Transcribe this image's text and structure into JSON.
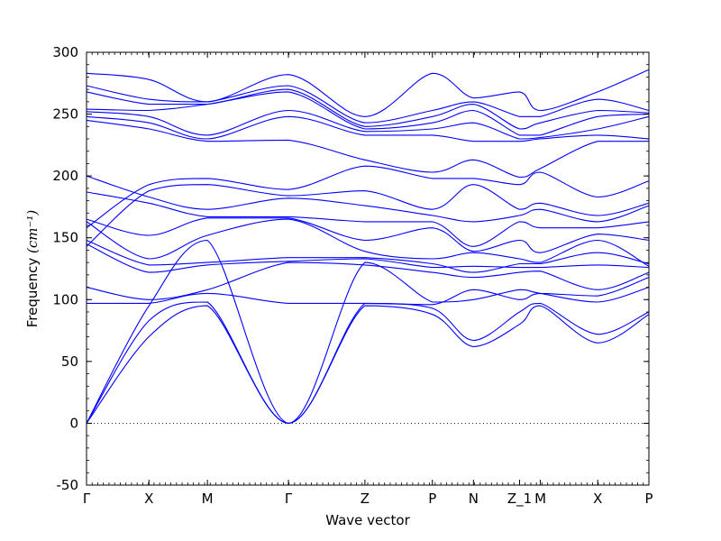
{
  "chart_data": {
    "type": "line",
    "title": "",
    "xlabel": "Wave vector",
    "ylabel_text": "Frequency",
    "ylabel_unit": "(cm⁻¹)",
    "ylim": [
      -50,
      300
    ],
    "yticks": [
      -50,
      0,
      50,
      100,
      150,
      200,
      250,
      300
    ],
    "y_minor_step": 10,
    "x_minor_divisions": 100,
    "kpoint_labels": [
      "Γ",
      "X",
      "M",
      "Γ",
      "Z",
      "P",
      "N",
      "Z_1",
      "M",
      "X",
      "P"
    ],
    "kpoint_positions": [
      0,
      0.111,
      0.215,
      0.359,
      0.495,
      0.615,
      0.688,
      0.77,
      0.807,
      0.909,
      1.0
    ],
    "line_color": "#0000ff",
    "axis_color": "#000000",
    "grid": false,
    "legend": false,
    "zero_line": {
      "value": 0,
      "style": "dotted",
      "color": "#000000"
    },
    "series": [
      {
        "name": "band-01",
        "values": [
          0,
          70,
          95,
          0,
          95,
          88,
          62,
          80,
          95,
          65,
          88
        ]
      },
      {
        "name": "band-02",
        "values": [
          0,
          83,
          98,
          0,
          97,
          93,
          67,
          90,
          97,
          72,
          90
        ]
      },
      {
        "name": "band-03",
        "values": [
          0,
          95,
          148,
          0,
          130,
          98,
          100,
          108,
          105,
          98,
          110
        ]
      },
      {
        "name": "band-04",
        "values": [
          97,
          97,
          105,
          97,
          97,
          96,
          108,
          100,
          105,
          103,
          118
        ]
      },
      {
        "name": "band-05",
        "values": [
          110,
          100,
          108,
          130,
          128,
          122,
          118,
          122,
          123,
          108,
          122
        ]
      },
      {
        "name": "band-06",
        "values": [
          145,
          122,
          128,
          131,
          133,
          126,
          127,
          126,
          126,
          128,
          126
        ]
      },
      {
        "name": "band-07",
        "values": [
          148,
          128,
          130,
          134,
          134,
          129,
          122,
          129,
          129,
          138,
          129
        ]
      },
      {
        "name": "band-08",
        "values": [
          163,
          133,
          152,
          165,
          139,
          133,
          138,
          133,
          130,
          148,
          127
        ]
      },
      {
        "name": "band-09",
        "values": [
          165,
          152,
          166,
          166,
          148,
          158,
          139,
          148,
          138,
          153,
          148
        ]
      },
      {
        "name": "band-10",
        "values": [
          187,
          178,
          167,
          167,
          163,
          163,
          143,
          163,
          158,
          158,
          163
        ]
      },
      {
        "name": "band-11",
        "values": [
          200,
          183,
          173,
          182,
          176,
          168,
          163,
          168,
          173,
          163,
          176
        ]
      },
      {
        "name": "band-12",
        "values": [
          143,
          188,
          193,
          184,
          188,
          173,
          193,
          173,
          178,
          168,
          178
        ]
      },
      {
        "name": "band-13",
        "values": [
          158,
          193,
          198,
          189,
          208,
          198,
          198,
          193,
          203,
          183,
          196
        ]
      },
      {
        "name": "band-14",
        "values": [
          245,
          238,
          228,
          229,
          213,
          203,
          213,
          199,
          206,
          228,
          228
        ]
      },
      {
        "name": "band-15",
        "values": [
          248,
          243,
          230,
          248,
          233,
          233,
          228,
          228,
          230,
          233,
          230
        ]
      },
      {
        "name": "band-16",
        "values": [
          252,
          248,
          233,
          253,
          236,
          238,
          243,
          230,
          231,
          238,
          248
        ]
      },
      {
        "name": "band-17",
        "values": [
          254,
          253,
          258,
          268,
          238,
          243,
          253,
          233,
          233,
          248,
          250
        ]
      },
      {
        "name": "band-18",
        "values": [
          268,
          258,
          258,
          270,
          240,
          248,
          258,
          238,
          243,
          253,
          251
        ]
      },
      {
        "name": "band-19",
        "values": [
          273,
          262,
          260,
          273,
          243,
          253,
          260,
          248,
          248,
          262,
          253
        ]
      },
      {
        "name": "band-20",
        "values": [
          283,
          278,
          260,
          282,
          248,
          283,
          263,
          268,
          253,
          268,
          286
        ]
      }
    ]
  }
}
